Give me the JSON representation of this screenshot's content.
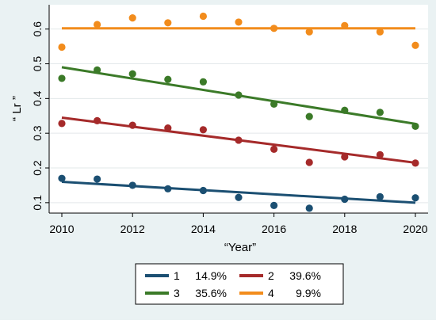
{
  "chart_data": {
    "type": "scatter",
    "title": "",
    "xlabel": "“Year”",
    "ylabel": "“ Lr ”",
    "xlim": [
      2010,
      2020
    ],
    "ylim": [
      0.07,
      0.67
    ],
    "x_ticks": [
      2010,
      2012,
      2014,
      2016,
      2018,
      2020
    ],
    "y_ticks": [
      0.1,
      0.2,
      0.3,
      0.4,
      0.5,
      0.6
    ],
    "x_tick_labels": [
      "2010",
      "2012",
      "2014",
      "2016",
      "2018",
      "2020"
    ],
    "y_tick_labels": [
      "0.1",
      "0.2",
      "0.3",
      "0.4",
      "0.5",
      "0.6"
    ],
    "grid": true,
    "legend_position": "bottom",
    "x": [
      2010,
      2011,
      2012,
      2013,
      2014,
      2015,
      2016,
      2017,
      2018,
      2019,
      2020
    ],
    "series": [
      {
        "name": "1",
        "share": "14.9%",
        "color": "#1b4f72",
        "values": [
          0.17,
          0.168,
          0.15,
          0.14,
          0.135,
          0.115,
          0.092,
          0.084,
          0.11,
          0.117,
          0.114
        ],
        "trend": [
          0.16,
          0.1
        ]
      },
      {
        "name": "2",
        "share": "39.6%",
        "color": "#a52a2a",
        "values": [
          0.328,
          0.336,
          0.323,
          0.315,
          0.31,
          0.28,
          0.254,
          0.216,
          0.232,
          0.238,
          0.214
        ],
        "trend": [
          0.345,
          0.215
        ]
      },
      {
        "name": "3",
        "share": "35.6%",
        "color": "#3b7a28",
        "values": [
          0.458,
          0.482,
          0.471,
          0.455,
          0.448,
          0.41,
          0.384,
          0.348,
          0.366,
          0.36,
          0.32
        ],
        "trend": [
          0.49,
          0.327
        ]
      },
      {
        "name": "4",
        "share": "9.9%",
        "color": "#f28c1c",
        "values": [
          0.548,
          0.613,
          0.632,
          0.618,
          0.637,
          0.62,
          0.602,
          0.592,
          0.61,
          0.592,
          0.553
        ],
        "trend": [
          0.602,
          0.602
        ]
      }
    ]
  }
}
